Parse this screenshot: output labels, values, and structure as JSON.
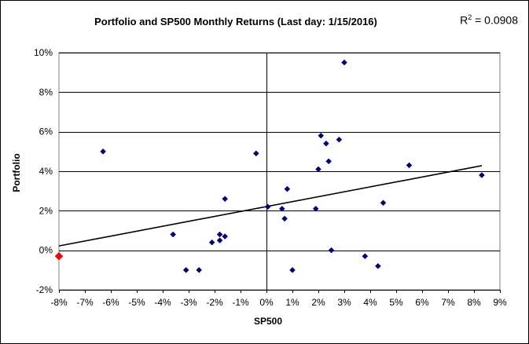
{
  "chart_data": {
    "type": "scatter",
    "title": "Portfolio and SP500 Monthly Returns (Last day: 1/15/2016)",
    "annotation": {
      "r2_base": "R",
      "r2_sup": "2",
      "r2_rest": " = 0.0908"
    },
    "xlabel": "SP500",
    "ylabel": "Portfolio",
    "xlim": [
      -0.08,
      0.09
    ],
    "ylim": [
      -0.02,
      0.1
    ],
    "x_ticks": [
      -0.08,
      -0.07,
      -0.06,
      -0.05,
      -0.04,
      -0.03,
      -0.02,
      -0.01,
      0.0,
      0.01,
      0.02,
      0.03,
      0.04,
      0.05,
      0.06,
      0.07,
      0.08,
      0.09
    ],
    "x_tick_labels": [
      "-8%",
      "-7%",
      "-6%",
      "-5%",
      "-4%",
      "-3%",
      "-2%",
      "-1%",
      "0%",
      "1%",
      "2%",
      "3%",
      "4%",
      "5%",
      "6%",
      "7%",
      "8%",
      "9%"
    ],
    "y_ticks": [
      -0.02,
      0.0,
      0.02,
      0.04,
      0.06,
      0.08,
      0.1
    ],
    "y_tick_labels": [
      "-2%",
      "0%",
      "2%",
      "4%",
      "6%",
      "8%",
      "10%"
    ],
    "grid": "horizontal",
    "series": [
      {
        "color": "#000080",
        "points": [
          [
            -0.063,
            0.05
          ],
          [
            -0.036,
            0.008
          ],
          [
            -0.031,
            -0.01
          ],
          [
            -0.026,
            -0.01
          ],
          [
            -0.021,
            0.004
          ],
          [
            -0.018,
            0.008
          ],
          [
            -0.018,
            0.005
          ],
          [
            -0.016,
            0.007
          ],
          [
            -0.016,
            0.026
          ],
          [
            -0.004,
            0.049
          ],
          [
            0.0005,
            0.022
          ],
          [
            0.006,
            0.021
          ],
          [
            0.007,
            0.016
          ],
          [
            0.008,
            0.031
          ],
          [
            0.01,
            -0.01
          ],
          [
            0.019,
            0.021
          ],
          [
            0.02,
            0.041
          ],
          [
            0.021,
            0.058
          ],
          [
            0.023,
            0.054
          ],
          [
            0.024,
            0.045
          ],
          [
            0.025,
            0.0
          ],
          [
            0.028,
            0.056
          ],
          [
            0.03,
            0.095
          ],
          [
            0.038,
            -0.003
          ],
          [
            0.043,
            -0.008
          ],
          [
            0.045,
            0.024
          ],
          [
            0.055,
            0.043
          ],
          [
            0.083,
            0.038
          ]
        ]
      },
      {
        "color": "#ff0000",
        "points": [
          [
            -0.08,
            -0.003
          ]
        ]
      }
    ],
    "trendline": {
      "x": [
        -0.08,
        0.083
      ],
      "y": [
        0.0022,
        0.0428
      ],
      "color": "#000000"
    }
  }
}
